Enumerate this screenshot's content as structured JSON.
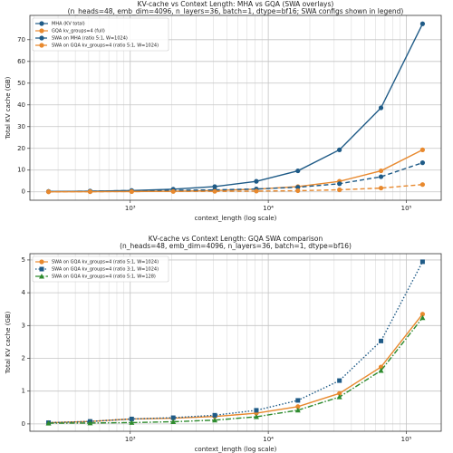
{
  "chart_data": [
    {
      "type": "line",
      "title": "KV-cache vs Context Length: MHA vs GQA (SWA overlays)",
      "subtitle": "(n_heads=48, emb_dim=4096, n_layers=36, batch=1, dtype=bf16; SWA configs shown in legend)",
      "x_label": "context_length (log scale)",
      "y_label": "Total KV cache (GB)",
      "x": [
        256,
        512,
        1024,
        2048,
        4096,
        8192,
        16384,
        32768,
        65536,
        131072
      ],
      "xscale": "log",
      "xlim": [
        187.6,
        178900
      ],
      "xticks": [
        {
          "value": 1000,
          "label": "10³"
        },
        {
          "value": 10000,
          "label": "10⁴"
        },
        {
          "value": 100000,
          "label": "10⁵"
        }
      ],
      "xminor_ticks": [
        200,
        300,
        400,
        500,
        600,
        700,
        800,
        900,
        2000,
        3000,
        4000,
        5000,
        6000,
        7000,
        8000,
        9000,
        20000,
        30000,
        40000,
        50000,
        60000,
        70000,
        80000,
        90000
      ],
      "ylim": [
        -3.86,
        81.17
      ],
      "yticks": [
        0,
        10,
        20,
        30,
        40,
        50,
        60,
        70
      ],
      "grid": true,
      "legend": "upper-left",
      "series": [
        {
          "name": "MHA (KV total)",
          "color": "#1f5b87",
          "linestyle": "solid",
          "marker": "circle",
          "values": [
            0.151,
            0.302,
            0.604,
            1.208,
            2.416,
            4.832,
            9.664,
            19.33,
            38.65,
            77.31
          ]
        },
        {
          "name": "GQA kv_groups=4 (full)",
          "color": "#e8892e",
          "linestyle": "solid",
          "marker": "circle",
          "values": [
            0.038,
            0.076,
            0.151,
            0.302,
            0.604,
            1.208,
            2.416,
            4.832,
            9.664,
            19.33
          ]
        },
        {
          "name": "SWA on MHA (ratio 5:1, W=1024)",
          "color": "#1f5b87",
          "linestyle": "dashed",
          "marker": "circle",
          "values": [
            0.151,
            0.302,
            0.604,
            0.704,
            0.906,
            1.308,
            2.114,
            3.725,
            6.945,
            13.39
          ]
        },
        {
          "name": "SWA on GQA kv_groups=4 (ratio 5:1, W=1024)",
          "color": "#e8892e",
          "linestyle": "dashed",
          "marker": "circle",
          "values": [
            0.038,
            0.076,
            0.151,
            0.176,
            0.226,
            0.327,
            0.528,
            0.931,
            1.736,
            3.347
          ]
        }
      ]
    },
    {
      "type": "line",
      "title": "KV-cache vs Context Length: GQA SWA comparison",
      "subtitle": "(n_heads=48, emb_dim=4096, n_layers=36, batch=1, dtype=bf16)",
      "x_label": "context_length (log scale)",
      "y_label": "Total KV cache (GB)",
      "x": [
        256,
        512,
        1024,
        2048,
        4096,
        8192,
        16384,
        32768,
        65536,
        131072
      ],
      "xscale": "log",
      "xlim": [
        187.6,
        178900
      ],
      "xticks": [
        {
          "value": 1000,
          "label": "10³"
        },
        {
          "value": 10000,
          "label": "10⁴"
        },
        {
          "value": 100000,
          "label": "10⁵"
        }
      ],
      "xminor_ticks": [
        200,
        300,
        400,
        500,
        600,
        700,
        800,
        900,
        2000,
        3000,
        4000,
        5000,
        6000,
        7000,
        8000,
        9000,
        20000,
        30000,
        40000,
        50000,
        60000,
        70000,
        80000,
        90000
      ],
      "ylim": [
        -0.224,
        5.191
      ],
      "yticks": [
        0,
        1,
        2,
        3,
        4,
        5
      ],
      "grid": true,
      "legend": "upper-left",
      "series": [
        {
          "name": "SWA on GQA kv_groups=4 (ratio 5:1, W=1024)",
          "color": "#e8892e",
          "linestyle": "solid",
          "marker": "circle",
          "values": [
            0.038,
            0.076,
            0.151,
            0.176,
            0.226,
            0.327,
            0.528,
            0.931,
            1.736,
            3.347
          ]
        },
        {
          "name": "SWA on GQA kv_groups=4 (ratio 3:1, W=1024)",
          "color": "#1f5b87",
          "linestyle": "dotted",
          "marker": "square",
          "values": [
            0.038,
            0.076,
            0.151,
            0.189,
            0.264,
            0.415,
            0.717,
            1.321,
            2.529,
            4.945
          ]
        },
        {
          "name": "SWA on GQA kv_groups=4 (ratio 5:1, W=128)",
          "color": "#2e8b2e",
          "linestyle": "dashdot",
          "marker": "triangle",
          "values": [
            0.022,
            0.028,
            0.041,
            0.066,
            0.116,
            0.217,
            0.418,
            0.821,
            1.626,
            3.237
          ]
        }
      ]
    }
  ]
}
